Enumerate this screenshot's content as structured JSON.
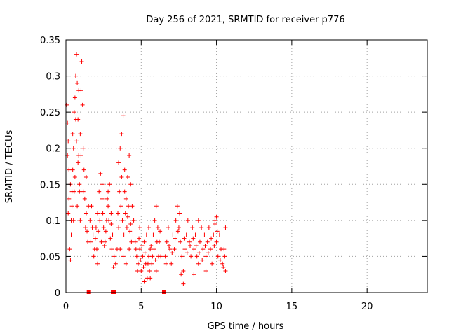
{
  "chart_data": {
    "type": "scatter",
    "title": "Day 256 of 2021, SRMTID for receiver p776",
    "xlabel": "GPS time / hours",
    "ylabel": "SRMTID / TECUs",
    "xlim": [
      0,
      24
    ],
    "ylim": [
      0,
      0.35
    ],
    "x_ticks": [
      0,
      5,
      10,
      15,
      20
    ],
    "y_ticks": [
      0,
      0.05,
      0.1,
      0.15,
      0.2,
      0.25,
      0.3,
      0.35
    ],
    "x_tick_labels": [
      "0",
      "5",
      "10",
      "15",
      "20"
    ],
    "y_tick_labels": [
      "0",
      "0.05",
      "0.1",
      "0.15",
      "0.2",
      "0.25",
      "0.3",
      "0.35"
    ],
    "grid": true,
    "marker": "+",
    "color": "#ff0000",
    "series": [
      {
        "name": "SRMTID",
        "points": [
          [
            0.05,
            0.26
          ],
          [
            0.1,
            0.235
          ],
          [
            0.15,
            0.21
          ],
          [
            0.2,
            0.13
          ],
          [
            0.25,
            0.06
          ],
          [
            0.3,
            0.045
          ],
          [
            0.35,
            0.1
          ],
          [
            0.4,
            0.14
          ],
          [
            0.45,
            0.17
          ],
          [
            0.5,
            0.2
          ],
          [
            0.55,
            0.25
          ],
          [
            0.6,
            0.27
          ],
          [
            0.65,
            0.3
          ],
          [
            0.7,
            0.33
          ],
          [
            0.75,
            0.29
          ],
          [
            0.8,
            0.24
          ],
          [
            0.85,
            0.19
          ],
          [
            0.9,
            0.15
          ],
          [
            0.95,
            0.22
          ],
          [
            1.0,
            0.28
          ],
          [
            1.05,
            0.32
          ],
          [
            1.1,
            0.26
          ],
          [
            1.15,
            0.2
          ],
          [
            1.2,
            0.17
          ],
          [
            1.25,
            0.13
          ],
          [
            1.3,
            0.09
          ],
          [
            1.35,
            0.11
          ],
          [
            1.4,
            0.085
          ],
          [
            1.45,
            0.07
          ],
          [
            1.5,
            0.12
          ],
          [
            0.1,
            0.19
          ],
          [
            0.2,
            0.17
          ],
          [
            0.3,
            0.15
          ],
          [
            0.4,
            0.12
          ],
          [
            0.5,
            0.1
          ],
          [
            0.6,
            0.16
          ],
          [
            0.7,
            0.21
          ],
          [
            0.8,
            0.18
          ],
          [
            0.9,
            0.14
          ],
          [
            1.0,
            0.19
          ],
          [
            0.15,
            0.11
          ],
          [
            0.35,
            0.08
          ],
          [
            0.55,
            0.14
          ],
          [
            0.75,
            0.12
          ],
          [
            0.95,
            0.1
          ],
          [
            1.15,
            0.14
          ],
          [
            1.35,
            0.16
          ],
          [
            0.45,
            0.22
          ],
          [
            0.65,
            0.24
          ],
          [
            0.85,
            0.28
          ],
          [
            1.6,
            0.1
          ],
          [
            1.7,
            0.12
          ],
          [
            1.8,
            0.08
          ],
          [
            1.9,
            0.06
          ],
          [
            2.0,
            0.09
          ],
          [
            2.1,
            0.11
          ],
          [
            2.2,
            0.14
          ],
          [
            2.3,
            0.165
          ],
          [
            2.4,
            0.13
          ],
          [
            2.5,
            0.09
          ],
          [
            2.6,
            0.07
          ],
          [
            2.7,
            0.1
          ],
          [
            2.8,
            0.12
          ],
          [
            2.9,
            0.15
          ],
          [
            3.0,
            0.11
          ],
          [
            3.1,
            0.08
          ],
          [
            3.2,
            0.05
          ],
          [
            3.3,
            0.04
          ],
          [
            3.4,
            0.06
          ],
          [
            3.5,
            0.09
          ],
          [
            1.65,
            0.07
          ],
          [
            1.75,
            0.09
          ],
          [
            1.85,
            0.05
          ],
          [
            1.95,
            0.075
          ],
          [
            2.05,
            0.06
          ],
          [
            2.15,
            0.085
          ],
          [
            2.25,
            0.1
          ],
          [
            2.35,
            0.07
          ],
          [
            2.45,
            0.11
          ],
          [
            2.55,
            0.065
          ],
          [
            2.65,
            0.085
          ],
          [
            2.75,
            0.13
          ],
          [
            2.85,
            0.1
          ],
          [
            2.95,
            0.075
          ],
          [
            3.05,
            0.06
          ],
          [
            3.15,
            0.035
          ],
          [
            2.1,
            0.04
          ],
          [
            2.4,
            0.15
          ],
          [
            2.8,
            0.14
          ],
          [
            3.0,
            0.095
          ],
          [
            3.5,
            0.18
          ],
          [
            3.6,
            0.2
          ],
          [
            3.7,
            0.22
          ],
          [
            3.8,
            0.245
          ],
          [
            3.9,
            0.17
          ],
          [
            4.0,
            0.13
          ],
          [
            4.1,
            0.16
          ],
          [
            4.2,
            0.19
          ],
          [
            4.3,
            0.15
          ],
          [
            4.4,
            0.12
          ],
          [
            4.5,
            0.1
          ],
          [
            3.55,
            0.14
          ],
          [
            3.65,
            0.12
          ],
          [
            3.75,
            0.1
          ],
          [
            3.85,
            0.08
          ],
          [
            3.95,
            0.11
          ],
          [
            4.05,
            0.09
          ],
          [
            4.15,
            0.12
          ],
          [
            4.25,
            0.085
          ],
          [
            4.35,
            0.07
          ],
          [
            3.6,
            0.06
          ],
          [
            3.8,
            0.05
          ],
          [
            4.0,
            0.04
          ],
          [
            4.2,
            0.06
          ],
          [
            4.45,
            0.08
          ],
          [
            3.45,
            0.11
          ],
          [
            3.7,
            0.16
          ],
          [
            3.9,
            0.14
          ],
          [
            4.1,
            0.105
          ],
          [
            4.3,
            0.095
          ],
          [
            4.6,
            0.07
          ],
          [
            4.7,
            0.05
          ],
          [
            4.8,
            0.04
          ],
          [
            4.9,
            0.06
          ],
          [
            5.0,
            0.03
          ],
          [
            5.1,
            0.05
          ],
          [
            5.2,
            0.07
          ],
          [
            5.3,
            0.04
          ],
          [
            5.4,
            0.02
          ],
          [
            5.5,
            0.05
          ],
          [
            5.6,
            0.06
          ],
          [
            5.7,
            0.04
          ],
          [
            5.8,
            0.08
          ],
          [
            5.9,
            0.1
          ],
          [
            6.0,
            0.12
          ],
          [
            6.1,
            0.09
          ],
          [
            6.2,
            0.07
          ],
          [
            6.3,
            0.05
          ],
          [
            4.65,
            0.06
          ],
          [
            4.75,
            0.03
          ],
          [
            4.85,
            0.075
          ],
          [
            4.95,
            0.045
          ],
          [
            5.05,
            0.065
          ],
          [
            5.15,
            0.035
          ],
          [
            5.25,
            0.055
          ],
          [
            5.35,
            0.08
          ],
          [
            5.45,
            0.04
          ],
          [
            5.55,
            0.03
          ],
          [
            5.65,
            0.065
          ],
          [
            5.75,
            0.05
          ],
          [
            5.85,
            0.06
          ],
          [
            5.95,
            0.045
          ],
          [
            6.05,
            0.07
          ],
          [
            6.15,
            0.05
          ],
          [
            6.25,
            0.085
          ],
          [
            5.2,
            0.015
          ],
          [
            5.6,
            0.02
          ],
          [
            6.0,
            0.03
          ],
          [
            4.9,
            0.09
          ],
          [
            5.5,
            0.09
          ],
          [
            6.6,
            0.05
          ],
          [
            6.7,
            0.07
          ],
          [
            6.8,
            0.09
          ],
          [
            6.9,
            0.06
          ],
          [
            7.0,
            0.04
          ],
          [
            7.1,
            0.08
          ],
          [
            7.2,
            0.06
          ],
          [
            7.3,
            0.1
          ],
          [
            7.4,
            0.12
          ],
          [
            7.5,
            0.09
          ],
          [
            7.6,
            0.07
          ],
          [
            7.7,
            0.05
          ],
          [
            7.8,
            0.03
          ],
          [
            7.9,
            0.06
          ],
          [
            8.0,
            0.08
          ],
          [
            8.1,
            0.1
          ],
          [
            8.2,
            0.07
          ],
          [
            8.3,
            0.05
          ],
          [
            8.4,
            0.09
          ],
          [
            8.5,
            0.06
          ],
          [
            8.6,
            0.08
          ],
          [
            8.7,
            0.05
          ],
          [
            8.8,
            0.04
          ],
          [
            8.9,
            0.07
          ],
          [
            9.0,
            0.09
          ],
          [
            9.1,
            0.06
          ],
          [
            9.2,
            0.08
          ],
          [
            9.3,
            0.05
          ],
          [
            9.4,
            0.07
          ],
          [
            9.5,
            0.09
          ],
          [
            9.6,
            0.06
          ],
          [
            9.7,
            0.04
          ],
          [
            9.8,
            0.08
          ],
          [
            9.9,
            0.1
          ],
          [
            10.0,
            0.07
          ],
          [
            10.1,
            0.05
          ],
          [
            10.2,
            0.08
          ],
          [
            10.3,
            0.06
          ],
          [
            10.4,
            0.04
          ],
          [
            10.5,
            0.06
          ],
          [
            10.6,
            0.09
          ],
          [
            6.65,
            0.04
          ],
          [
            6.85,
            0.065
          ],
          [
            7.05,
            0.055
          ],
          [
            7.25,
            0.075
          ],
          [
            7.45,
            0.085
          ],
          [
            7.65,
            0.025
          ],
          [
            7.85,
            0.075
          ],
          [
            8.05,
            0.055
          ],
          [
            8.25,
            0.065
          ],
          [
            8.45,
            0.075
          ],
          [
            8.65,
            0.065
          ],
          [
            8.85,
            0.055
          ],
          [
            9.05,
            0.045
          ],
          [
            9.25,
            0.065
          ],
          [
            9.45,
            0.055
          ],
          [
            9.65,
            0.075
          ],
          [
            9.85,
            0.065
          ],
          [
            10.05,
            0.085
          ],
          [
            10.25,
            0.045
          ],
          [
            10.45,
            0.035
          ],
          [
            10.55,
            0.05
          ],
          [
            7.8,
            0.012
          ],
          [
            8.5,
            0.025
          ],
          [
            9.3,
            0.03
          ],
          [
            10.0,
            0.105
          ],
          [
            7.55,
            0.11
          ],
          [
            8.8,
            0.1
          ],
          [
            9.9,
            0.095
          ],
          [
            10.6,
            0.03
          ]
        ]
      }
    ],
    "axis_markers": {
      "name": "data-gap markers",
      "shape": "square",
      "y": 0,
      "x": [
        1.5,
        3.1,
        3.2,
        6.5
      ]
    }
  }
}
